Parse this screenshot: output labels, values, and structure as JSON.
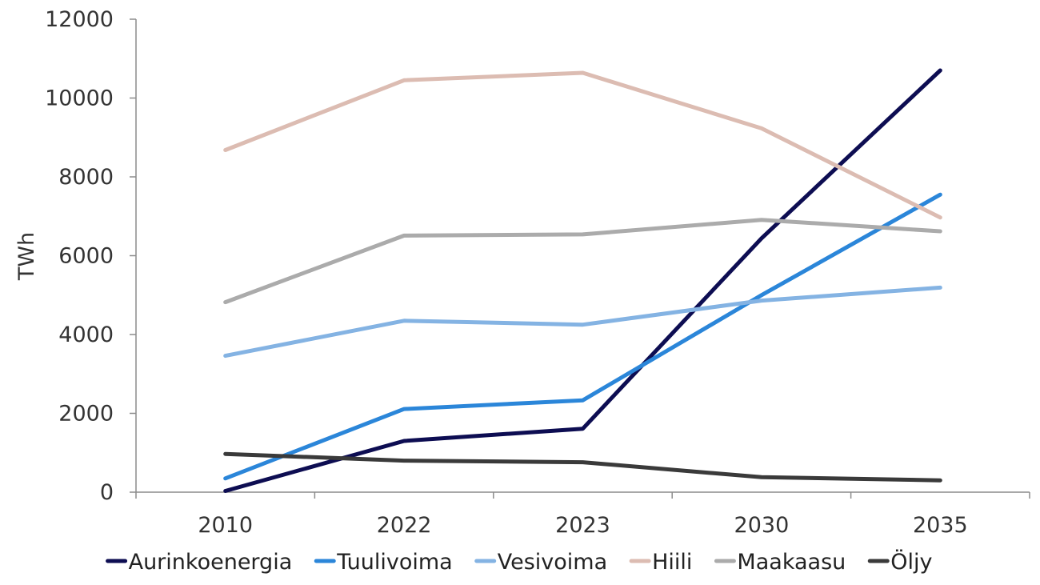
{
  "chart_data": {
    "type": "line",
    "title": "",
    "xlabel": "",
    "ylabel": "TWh",
    "categories": [
      "2010",
      "2022",
      "2023",
      "2030",
      "2035"
    ],
    "ylim": [
      0,
      12000
    ],
    "yticks": [
      0,
      2000,
      4000,
      6000,
      8000,
      10000,
      12000
    ],
    "grid": false,
    "legend_position": "bottom",
    "series": [
      {
        "name": "Aurinkoenergia",
        "color": "#0d0d52",
        "values": [
          30,
          1300,
          1610,
          6440,
          10700
        ]
      },
      {
        "name": "Tuulivoima",
        "color": "#2b86d9",
        "values": [
          350,
          2110,
          2330,
          5000,
          7550
        ]
      },
      {
        "name": "Vesivoima",
        "color": "#84b3e3",
        "values": [
          3460,
          4350,
          4250,
          4860,
          5190
        ]
      },
      {
        "name": "Hiili",
        "color": "#dcbcb2",
        "values": [
          8680,
          10450,
          10640,
          9230,
          6970
        ]
      },
      {
        "name": "Maakaasu",
        "color": "#ababab",
        "values": [
          4820,
          6510,
          6540,
          6910,
          6620
        ]
      },
      {
        "name": "Öljy",
        "color": "#3a3a3a",
        "values": [
          970,
          800,
          760,
          380,
          300
        ]
      }
    ]
  }
}
